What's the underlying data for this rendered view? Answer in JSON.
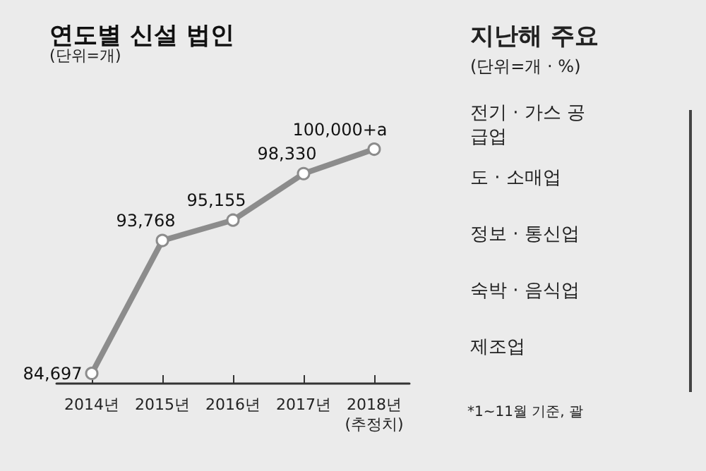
{
  "chart_data": [
    {
      "type": "line",
      "title": "연도별 신설 법인",
      "subtitle": "(단위=개)",
      "categories": [
        "2014년",
        "2015년",
        "2016년",
        "2017년",
        "2018년\n(추정치)"
      ],
      "series": [
        {
          "color": "#8c8c8c",
          "values": [
            84697,
            93768,
            95155,
            98330,
            100000
          ],
          "value_labels": [
            "84,697",
            "93,768",
            "95,155",
            "98,330",
            "100,000+a"
          ]
        }
      ],
      "tick_labels": "x",
      "marker": "circle",
      "line_style": "solid"
    },
    {
      "type": "other",
      "title": "지난해 주요",
      "subtitle": "(단위=개 · %)",
      "annotations": [
        "전기 · 가스 공급업",
        "도 · 소매업",
        "정보 · 통신업",
        "숙박 · 음식업",
        "제조업",
        "*1~11월 기준, 괄"
      ]
    }
  ]
}
